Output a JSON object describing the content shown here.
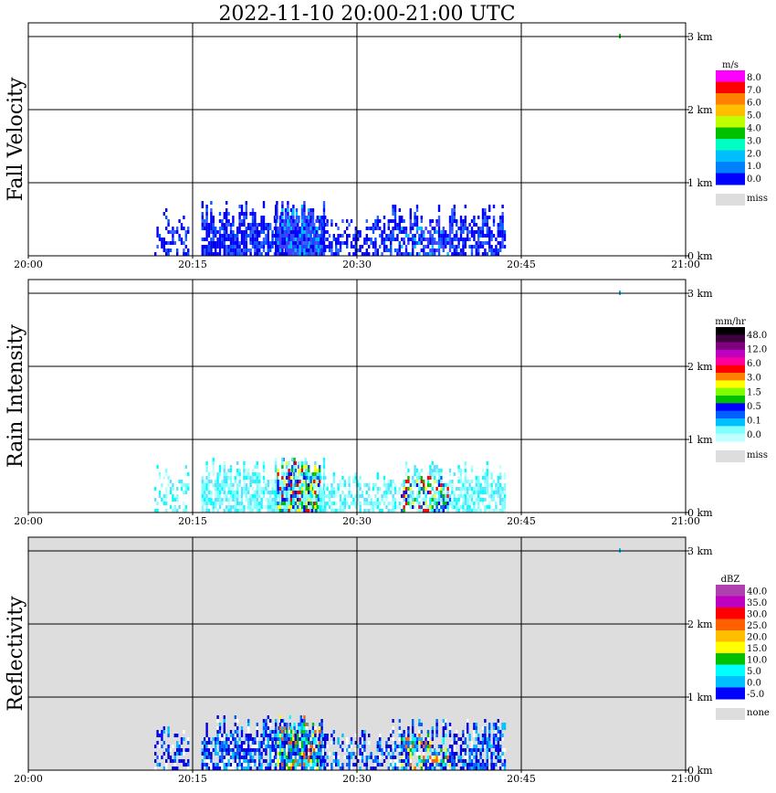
{
  "title": "2022-11-10   20:00-21:00 UTC",
  "chart_data": {
    "type": "heatmap",
    "x_ticks": [
      "20:00",
      "20:15",
      "20:30",
      "20:45",
      "21:00"
    ],
    "y_ticks": [
      "0 km",
      "1 km",
      "2 km",
      "3 km"
    ],
    "xlim": [
      0,
      60
    ],
    "ylim": [
      0,
      3.0
    ],
    "grid": true,
    "panels": [
      {
        "name": "Fall Velocity",
        "unit": "m/s",
        "background": "#ffffff",
        "legend": [
          "8.0",
          "7.0",
          "6.0",
          "5.0",
          "4.0",
          "3.0",
          "2.0",
          "1.0",
          "0.0"
        ],
        "legend_colors": [
          "#ff00ff",
          "#ff0000",
          "#ff7f00",
          "#ffbf00",
          "#bfff00",
          "#00c000",
          "#00ffc0",
          "#00bfff",
          "#0080ff",
          "#0000ff"
        ],
        "missing_label": "miss",
        "missing_color": "#dddddd",
        "echo_colors": [
          "#0000ff",
          "#0000ff",
          "#0000e0",
          "#0055ff",
          "#3060ff"
        ],
        "highlight_colors": [
          "#00bfff",
          "#4040ff"
        ]
      },
      {
        "name": "Rain Intensity",
        "unit": "mm/hr",
        "background": "#ffffff",
        "legend": [
          "48.0",
          "12.0",
          "6.0",
          "3.0",
          "1.5",
          "0.5",
          "0.1",
          "0.0"
        ],
        "legend_colors": [
          "#000000",
          "#400040",
          "#800080",
          "#c000c0",
          "#ff00a0",
          "#ff0000",
          "#ff8000",
          "#ffff00",
          "#80ff00",
          "#00c000",
          "#0000ff",
          "#0060ff",
          "#00bfff",
          "#80ffff",
          "#c0ffff"
        ],
        "missing_label": "miss",
        "missing_color": "#dddddd",
        "echo_colors": [
          "#c0ffff",
          "#80ffff",
          "#80ffff",
          "#00ffff",
          "#60e0ff"
        ],
        "highlight_colors": [
          "#0060ff",
          "#0000ff",
          "#00c000",
          "#ffff00",
          "#ff0000"
        ]
      },
      {
        "name": "Reflectivity",
        "unit": "dBZ",
        "background": "#dddddd",
        "legend": [
          "40.0",
          "35.0",
          "30.0",
          "25.0",
          "20.0",
          "15.0",
          "10.0",
          "5.0",
          "0.0",
          "-5.0"
        ],
        "legend_colors": [
          "#b040b0",
          "#c000c0",
          "#ff0000",
          "#ff6000",
          "#ffbf00",
          "#ffff00",
          "#00c000",
          "#00ffff",
          "#00bfff",
          "#0000ff"
        ],
        "missing_label": "none",
        "missing_color": "#dddddd",
        "echo_colors": [
          "#0000ff",
          "#0000cc",
          "#ffffff",
          "#00bfff",
          "#0060ff"
        ],
        "highlight_colors": [
          "#00ffff",
          "#00c000",
          "#ffff00",
          "#ff6000",
          "#0060ff"
        ]
      }
    ],
    "echo_segments_minutes": [
      {
        "x0": 11.5,
        "x1": 14.5,
        "top_km": 0.65,
        "density": 0.45
      },
      {
        "x0": 15.8,
        "x1": 26.0,
        "top_km": 0.75,
        "density": 0.8
      },
      {
        "x0": 22.5,
        "x1": 27.0,
        "top_km": 0.75,
        "density": 0.95
      },
      {
        "x0": 26.0,
        "x1": 33.0,
        "top_km": 0.55,
        "density": 0.55
      },
      {
        "x0": 33.0,
        "x1": 43.5,
        "top_km": 0.7,
        "density": 0.7
      }
    ],
    "isolated_point": {
      "x": 54.0,
      "height_km": 3.0
    }
  }
}
